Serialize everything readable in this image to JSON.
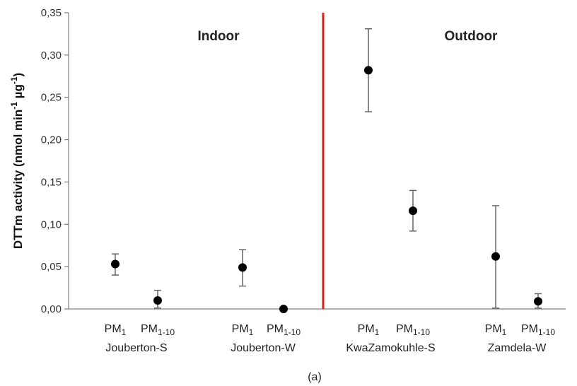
{
  "chart_data": {
    "type": "scatter",
    "title": "",
    "ylabel": {
      "base": "DTTm activity (nmol min",
      "sup1": "-1",
      "mid": " µg",
      "sup2": "-1",
      "end": ")"
    },
    "ylim": [
      0,
      0.35
    ],
    "yticks": [
      0,
      0.05,
      0.1,
      0.15,
      0.2,
      0.25,
      0.3,
      0.35
    ],
    "ytick_labels": [
      "0,00",
      "0,05",
      "0,10",
      "0,15",
      "0,20",
      "0,25",
      "0,30",
      "0,35"
    ],
    "regions": [
      {
        "label": "Indoor"
      },
      {
        "label": "Outdoor"
      }
    ],
    "divider_color": "#d62020",
    "marker_color": "#000000",
    "errorbar_color": "#666666",
    "points": [
      {
        "site": "Jouberton-S",
        "size": {
          "base": "PM",
          "sub": "1"
        },
        "value": 0.053,
        "err_low": 0.04,
        "err_high": 0.065
      },
      {
        "site": "Jouberton-S",
        "size": {
          "base": "PM",
          "sub": "1-10"
        },
        "value": 0.01,
        "err_low": 0.001,
        "err_high": 0.022
      },
      {
        "site": "Jouberton-W",
        "size": {
          "base": "PM",
          "sub": "1"
        },
        "value": 0.049,
        "err_low": 0.027,
        "err_high": 0.07
      },
      {
        "site": "Jouberton-W",
        "size": {
          "base": "PM",
          "sub": "1-10"
        },
        "value": 0.0,
        "err_low": 0.0,
        "err_high": 0.0
      },
      {
        "site": "KwaZamokuhle-S",
        "size": {
          "base": "PM",
          "sub": "1"
        },
        "value": 0.282,
        "err_low": 0.233,
        "err_high": 0.331
      },
      {
        "site": "KwaZamokuhle-S",
        "size": {
          "base": "PM",
          "sub": "1-10"
        },
        "value": 0.116,
        "err_low": 0.092,
        "err_high": 0.14
      },
      {
        "site": "Zamdela-W",
        "size": {
          "base": "PM",
          "sub": "1"
        },
        "value": 0.062,
        "err_low": 0.001,
        "err_high": 0.122
      },
      {
        "site": "Zamdela-W",
        "size": {
          "base": "PM",
          "sub": "1-10"
        },
        "value": 0.009,
        "err_low": 0.001,
        "err_high": 0.018
      }
    ],
    "sites": [
      "Jouberton-S",
      "Jouberton-W",
      "KwaZamokuhle-S",
      "Zamdela-W"
    ],
    "caption": "(a)"
  }
}
